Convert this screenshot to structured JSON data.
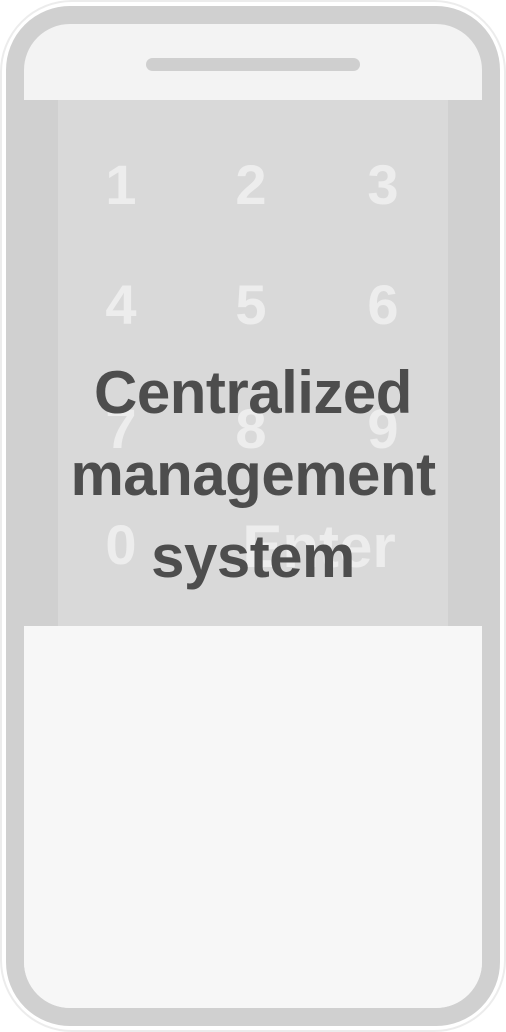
{
  "keypad": {
    "keys": [
      "1",
      "2",
      "3",
      "4",
      "5",
      "6",
      "7",
      "8",
      "9",
      "0"
    ],
    "enter_label": "Enter"
  },
  "overlay": {
    "lines": [
      "Centralized",
      "management",
      "system"
    ]
  }
}
